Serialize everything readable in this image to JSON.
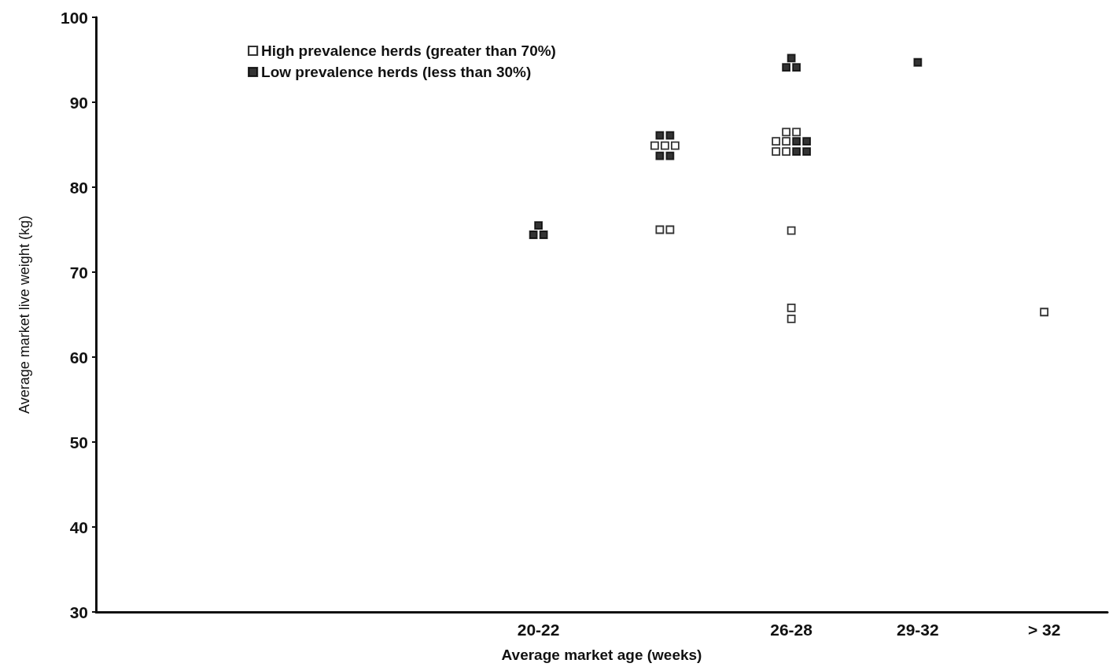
{
  "chart_data": {
    "type": "scatter",
    "xlabel": "Average market age (weeks)",
    "ylabel": "Average market live weight (kg)",
    "categories": [
      null,
      null,
      null,
      "20-22",
      null,
      "26-28",
      "29-32",
      "> 32"
    ],
    "ylim": [
      30,
      100
    ],
    "yticks": [
      30,
      40,
      50,
      60,
      70,
      80,
      90,
      100
    ],
    "marker": "square",
    "grid": false,
    "legend": "top left",
    "series": [
      {
        "name": "High prevalence herds (greater than 70%)",
        "color": "#ffffff",
        "values": [
          null,
          null,
          null,
          null,
          84.9,
          86.5,
          null,
          65.3
        ]
      },
      {
        "color": "#ffffff",
        "values": [
          null,
          null,
          null,
          null,
          84.9,
          86.5,
          null,
          null
        ]
      },
      {
        "color": "#ffffff",
        "values": [
          null,
          null,
          null,
          null,
          84.9,
          85.4,
          null,
          null
        ]
      },
      {
        "color": "#ffffff",
        "values": [
          null,
          null,
          null,
          null,
          75.0,
          85.4,
          null,
          null
        ]
      },
      {
        "color": "#ffffff",
        "values": [
          null,
          null,
          null,
          null,
          75.0,
          84.2,
          null,
          null
        ]
      },
      {
        "color": "#ffffff",
        "values": [
          null,
          null,
          null,
          null,
          null,
          84.2,
          null,
          null
        ]
      },
      {
        "color": "#ffffff",
        "values": [
          null,
          null,
          null,
          null,
          null,
          74.9,
          null,
          null
        ]
      },
      {
        "color": "#ffffff",
        "values": [
          null,
          null,
          null,
          null,
          null,
          65.8,
          null,
          null
        ]
      },
      {
        "color": "#ffffff",
        "values": [
          null,
          null,
          null,
          null,
          null,
          64.5,
          null,
          null
        ]
      },
      {
        "name": "Low prevalence herds (less than 30%)",
        "color": "#000000",
        "values": [
          null,
          null,
          null,
          75.5,
          86.1,
          95.2,
          94.7,
          null
        ]
      },
      {
        "color": "#000000",
        "values": [
          null,
          null,
          null,
          74.4,
          86.1,
          94.1,
          null,
          null
        ]
      },
      {
        "color": "#000000",
        "values": [
          null,
          null,
          null,
          74.4,
          83.7,
          94.1,
          null,
          null
        ]
      },
      {
        "color": "#000000",
        "values": [
          null,
          null,
          null,
          null,
          83.7,
          85.4,
          null,
          null
        ]
      },
      {
        "color": "#000000",
        "values": [
          null,
          null,
          null,
          null,
          null,
          85.4,
          null,
          null
        ]
      },
      {
        "color": "#000000",
        "values": [
          null,
          null,
          null,
          null,
          null,
          84.2,
          null,
          null
        ]
      },
      {
        "color": "#000000",
        "values": [
          null,
          null,
          null,
          null,
          null,
          84.2,
          null,
          null
        ]
      }
    ]
  }
}
